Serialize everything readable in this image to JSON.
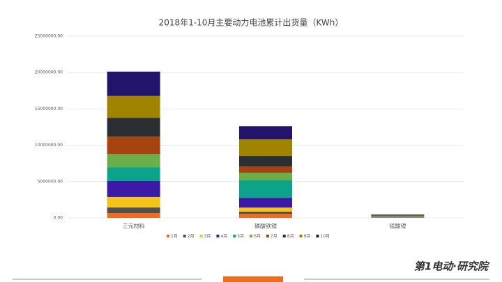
{
  "chart_data": {
    "type": "stacked_bar",
    "title": "2018年1-10月主要动力电池累计出货量（KWh）",
    "categories": [
      "三元材料",
      "磷酸铁锂",
      "锰酸锂"
    ],
    "series": [
      {
        "name": "1月",
        "color": "#f26b1d",
        "values": [
          670000,
          570000,
          20000
        ]
      },
      {
        "name": "2月",
        "color": "#505050",
        "values": [
          770000,
          290000,
          20000
        ]
      },
      {
        "name": "3月",
        "color": "#f5c41a",
        "values": [
          1440000,
          570000,
          30000
        ]
      },
      {
        "name": "4月",
        "color": "#3a1aa6",
        "values": [
          2200000,
          1340000,
          50000
        ]
      },
      {
        "name": "5月",
        "color": "#0ba38a",
        "values": [
          1900000,
          2400000,
          60000
        ]
      },
      {
        "name": "6月",
        "color": "#6cae4a",
        "values": [
          1800000,
          1050000,
          50000
        ]
      },
      {
        "name": "7月",
        "color": "#a6430e",
        "values": [
          2400000,
          860000,
          50000
        ]
      },
      {
        "name": "8月",
        "color": "#2b2e33",
        "values": [
          2600000,
          1440000,
          60000
        ]
      },
      {
        "name": "9月",
        "color": "#a08400",
        "values": [
          3000000,
          2300000,
          70000
        ]
      },
      {
        "name": "10月",
        "color": "#22136b",
        "values": [
          3350000,
          1800000,
          70000
        ]
      }
    ],
    "ylim": [
      0,
      25000000
    ],
    "yticks": [
      {
        "value": 0,
        "label": "0.00"
      },
      {
        "value": 5000000,
        "label": "5000000.00"
      },
      {
        "value": 10000000,
        "label": "10000000.00"
      },
      {
        "value": 15000000,
        "label": "15000000.00"
      },
      {
        "value": 20000000,
        "label": "20000000.00"
      },
      {
        "value": 25000000,
        "label": "25000000.00"
      }
    ],
    "grid": true,
    "legend": "bottom"
  },
  "logo": "第1电动·研究院"
}
